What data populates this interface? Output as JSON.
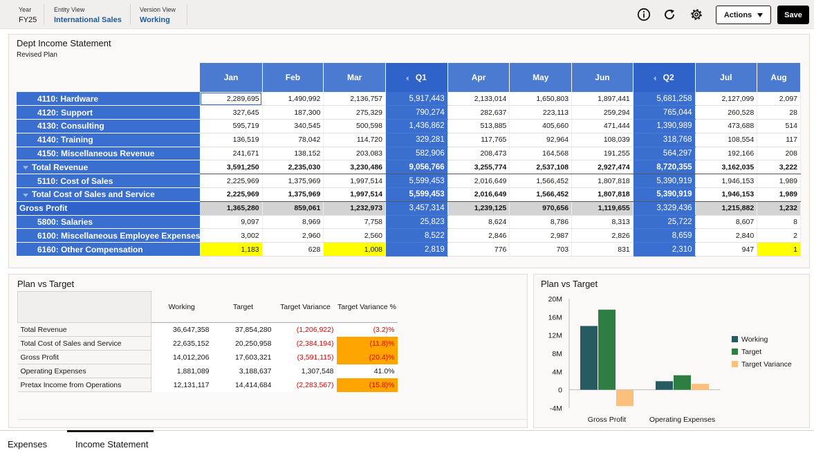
{
  "pov": {
    "year": {
      "label": "Year",
      "value": "FY25"
    },
    "entity": {
      "label": "Entity View",
      "value": "International Sales"
    },
    "version": {
      "label": "Version View",
      "value": "Working"
    }
  },
  "toolbar": {
    "info_icon": "info-icon",
    "refresh_icon": "refresh-icon",
    "settings_icon": "gear-icon",
    "actions_label": "Actions",
    "save_label": "Save"
  },
  "income": {
    "title": "Dept Income Statement",
    "subtitle": "Revised Plan",
    "columns": [
      "Jan",
      "Feb",
      "Mar",
      "Q1",
      "Apr",
      "May",
      "Jun",
      "Q2",
      "Jul",
      "Aug"
    ],
    "quarter_columns": [
      3,
      7
    ],
    "rows": [
      {
        "label": "4110: Hardware",
        "indent": 2,
        "values": [
          "2,289,695",
          "1,490,992",
          "2,136,757",
          "5,917,443",
          "2,133,014",
          "1,650,803",
          "1,897,441",
          "5,681,258",
          "2,127,099",
          "2,097"
        ]
      },
      {
        "label": "4120: Support",
        "indent": 2,
        "values": [
          "327,645",
          "187,300",
          "275,329",
          "790,274",
          "282,637",
          "223,113",
          "259,294",
          "765,044",
          "260,528",
          "28"
        ]
      },
      {
        "label": "4130: Consulting",
        "indent": 2,
        "values": [
          "595,719",
          "340,545",
          "500,598",
          "1,436,862",
          "513,885",
          "405,660",
          "471,444",
          "1,390,989",
          "473,688",
          "514"
        ]
      },
      {
        "label": "4140: Training",
        "indent": 2,
        "values": [
          "136,519",
          "78,042",
          "114,720",
          "329,281",
          "117,765",
          "92,964",
          "108,039",
          "318,768",
          "108,554",
          "117"
        ]
      },
      {
        "label": "4150: Miscellaneous Revenue",
        "indent": 2,
        "values": [
          "241,671",
          "138,152",
          "203,083",
          "582,906",
          "208,473",
          "164,568",
          "191,255",
          "564,297",
          "192,166",
          "208"
        ]
      },
      {
        "label": "Total Revenue",
        "indent": 1,
        "caret": true,
        "bold": true,
        "values": [
          "3,591,250",
          "2,235,030",
          "3,230,486",
          "9,056,766",
          "3,255,774",
          "2,537,108",
          "2,927,474",
          "8,720,355",
          "3,162,035",
          "3,222"
        ]
      },
      {
        "label": "5110: Cost of Sales",
        "indent": 2,
        "values": [
          "2,225,969",
          "1,375,969",
          "1,997,514",
          "5,599,453",
          "2,016,649",
          "1,566,452",
          "1,807,818",
          "5,390,919",
          "1,946,153",
          "1,989"
        ]
      },
      {
        "label": "Total Cost of Sales and Service",
        "indent": 1,
        "caret": true,
        "bold": true,
        "values": [
          "2,225,969",
          "1,375,969",
          "1,997,514",
          "5,599,453",
          "2,016,649",
          "1,566,452",
          "1,807,818",
          "5,390,919",
          "1,946,153",
          "1,989"
        ]
      },
      {
        "label": "Gross Profit",
        "indent": 0,
        "gross": true,
        "values": [
          "1,365,280",
          "859,061",
          "1,232,973",
          "3,457,314",
          "1,239,125",
          "970,656",
          "1,119,655",
          "3,329,436",
          "1,215,882",
          "1,232"
        ]
      },
      {
        "label": "5800: Salaries",
        "indent": 2,
        "values": [
          "9,097",
          "8,969",
          "7,758",
          "25,823",
          "8,624",
          "8,786",
          "8,313",
          "25,722",
          "8,607",
          "8"
        ]
      },
      {
        "label": "6100: Miscellaneous Employee Expenses",
        "indent": 2,
        "values": [
          "3,002",
          "2,960",
          "2,560",
          "8,522",
          "2,846",
          "2,987",
          "2,826",
          "8,659",
          "2,840",
          "2"
        ]
      },
      {
        "label": "6160: Other Compensation",
        "indent": 2,
        "highlight": [
          0,
          2,
          9
        ],
        "values": [
          "1,183",
          "628",
          "1,008",
          "2,819",
          "776",
          "703",
          "831",
          "2,310",
          "947",
          "1"
        ]
      }
    ]
  },
  "pvt_table": {
    "title": "Plan vs Target",
    "headers": [
      "Working",
      "Target",
      "Target Variance",
      "Target Variance %"
    ],
    "rows": [
      {
        "label": "Total Revenue",
        "values": [
          "36,647,358",
          "37,854,280",
          "(1,206,922)",
          "(3.2)%"
        ],
        "styles": [
          "",
          "",
          "neg",
          "neg"
        ]
      },
      {
        "label": "Total Cost of Sales and Service",
        "values": [
          "22,635,152",
          "20,250,958",
          "(2,384,194)",
          "(11.8)%"
        ],
        "styles": [
          "",
          "",
          "neg",
          "orange"
        ]
      },
      {
        "label": "Gross Profit",
        "values": [
          "14,012,206",
          "17,603,321",
          "(3,591,115)",
          "(20.4)%"
        ],
        "styles": [
          "",
          "",
          "neg",
          "orange"
        ]
      },
      {
        "label": "Operating Expenses",
        "values": [
          "1,881,089",
          "3,188,637",
          "1,307,548",
          "41.0%"
        ],
        "styles": [
          "",
          "",
          "",
          ""
        ]
      },
      {
        "label": "Pretax Income from Operations",
        "values": [
          "12,131,117",
          "14,414,684",
          "(2,283,567)",
          "(15.8)%"
        ],
        "styles": [
          "",
          "",
          "neg",
          "orange"
        ]
      }
    ]
  },
  "pvt_chart": {
    "title": "Plan vs Target",
    "chart_data": {
      "type": "bar",
      "categories": [
        "Gross Profit",
        "Operating Expenses"
      ],
      "series": [
        {
          "name": "Working",
          "color": "#265b62",
          "values": [
            14012206,
            1881089
          ]
        },
        {
          "name": "Target",
          "color": "#2e7d43",
          "values": [
            17603321,
            3188637
          ]
        },
        {
          "name": "Target Variance",
          "color": "#fdc07c",
          "values": [
            -3591115,
            1307548
          ]
        }
      ],
      "ylim": [
        -4000000,
        20000000
      ],
      "yticks": [
        {
          "v": 20000000,
          "label": "20M"
        },
        {
          "v": 16000000,
          "label": "16M"
        },
        {
          "v": 12000000,
          "label": "12M"
        },
        {
          "v": 8000000,
          "label": "8M"
        },
        {
          "v": 4000000,
          "label": "4M"
        },
        {
          "v": 0,
          "label": "0"
        },
        {
          "v": -4000000,
          "label": "-4M"
        }
      ],
      "legend": "right"
    }
  },
  "tabs": [
    {
      "label": "Expenses",
      "active": false
    },
    {
      "label": "Income Statement",
      "active": true
    }
  ]
}
